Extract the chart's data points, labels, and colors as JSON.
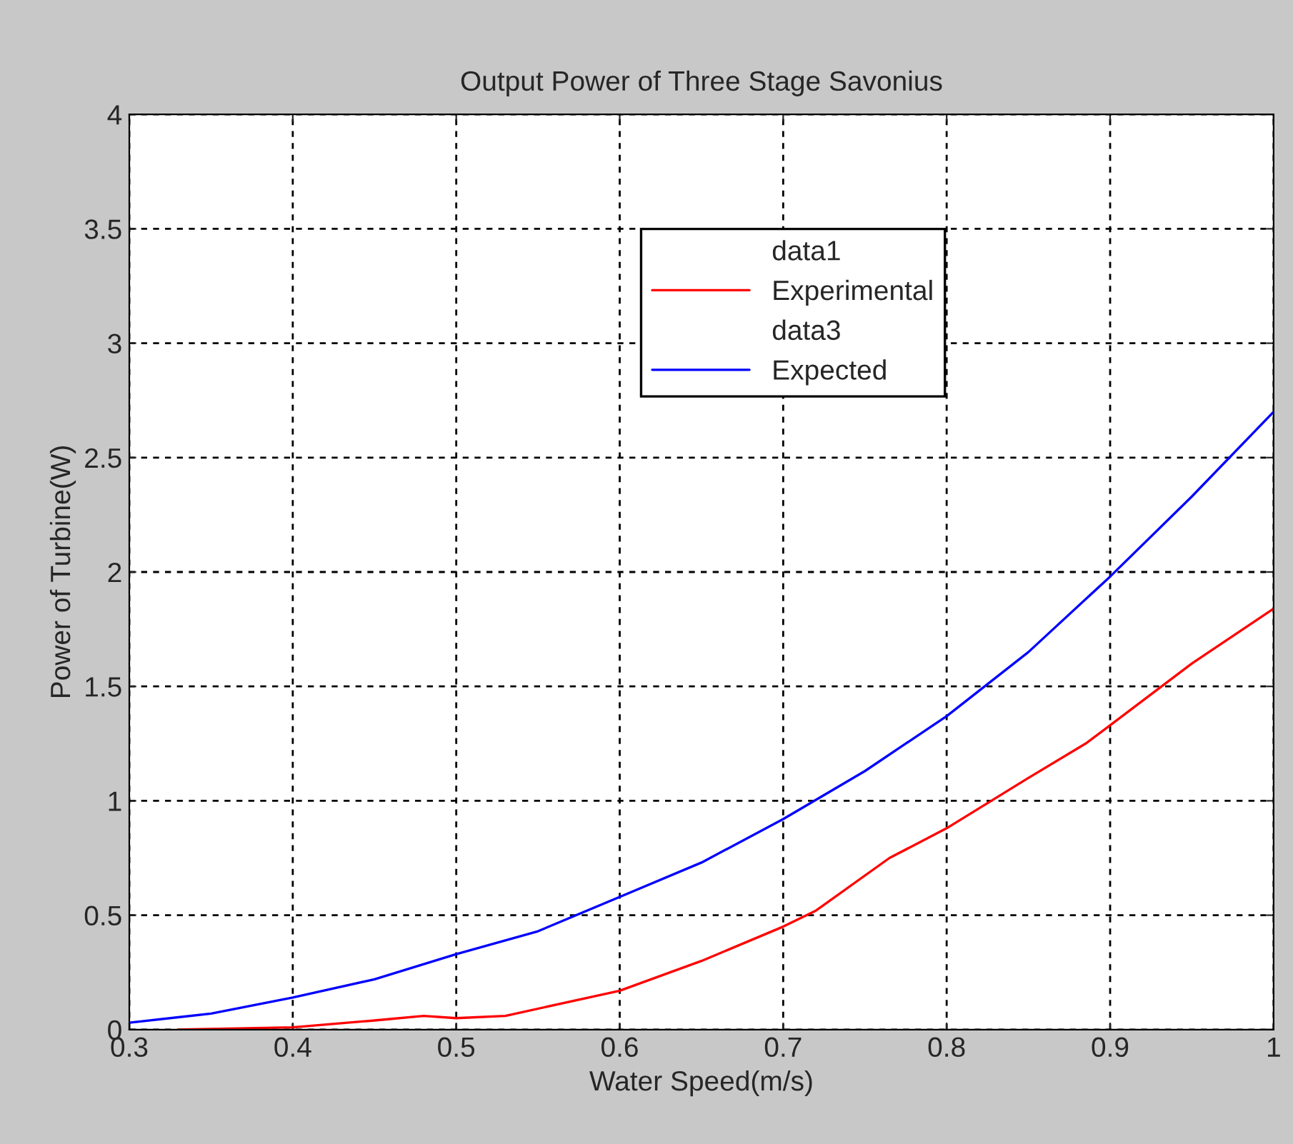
{
  "chart_data": {
    "type": "line",
    "title": "Output Power of Three Stage Savonius",
    "xlabel": "Water Speed(m/s)",
    "ylabel": "Power of Turbine(W)",
    "series": [
      {
        "name": "data1"
      },
      {
        "name": "Experimental",
        "color": "#ff0000",
        "x": [
          0.33,
          0.4,
          0.45,
          0.48,
          0.5,
          0.53,
          0.6,
          0.65,
          0.7,
          0.72,
          0.765,
          0.8,
          0.85,
          0.885,
          0.9,
          0.95,
          1.0
        ],
        "values": [
          0,
          0.01,
          0.04,
          0.06,
          0.05,
          0.06,
          0.17,
          0.3,
          0.45,
          0.52,
          0.75,
          0.88,
          1.1,
          1.25,
          1.33,
          1.6,
          1.84
        ]
      },
      {
        "name": "data3"
      },
      {
        "name": "Expected",
        "color": "#0000ff",
        "x": [
          0.3,
          0.35,
          0.4,
          0.45,
          0.5,
          0.55,
          0.6,
          0.65,
          0.7,
          0.75,
          0.8,
          0.85,
          0.9,
          0.95,
          1.0
        ],
        "values": [
          0.03,
          0.07,
          0.14,
          0.22,
          0.33,
          0.43,
          0.58,
          0.73,
          0.92,
          1.13,
          1.37,
          1.65,
          1.98,
          2.33,
          2.7
        ]
      }
    ],
    "xlim": [
      0.3,
      1.0
    ],
    "xticks": [
      0.3,
      0.4,
      0.5,
      0.6,
      0.7,
      0.8,
      0.9,
      1
    ],
    "ylim": [
      0,
      4
    ],
    "yticks": [
      0,
      0.5,
      1,
      1.5,
      2,
      2.5,
      3,
      3.5,
      4
    ],
    "grid": true,
    "legend": "top",
    "marker": "none",
    "line_style": "solid"
  }
}
